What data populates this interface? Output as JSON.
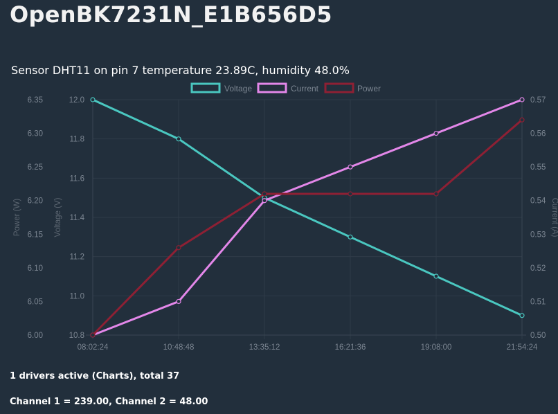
{
  "device": {
    "title": "OpenBK7231N_E1B656D5"
  },
  "sensor": {
    "text": "Sensor DHT11 on pin 7 temperature 23.89C, humidity 48.0%"
  },
  "status": {
    "drivers": "1 drivers active (Charts), total 37",
    "channels": "Channel 1 = 239.00, Channel 2 = 48.00"
  },
  "chart_data": {
    "type": "line",
    "categories": [
      "08:02:24",
      "10:48:48",
      "13:35:12",
      "16:21:36",
      "19:08:00",
      "21:54:24"
    ],
    "series": [
      {
        "name": "Voltage",
        "axis": "voltage",
        "color": "#4ac7c0",
        "values": [
          12.0,
          11.8,
          11.5,
          11.3,
          11.1,
          10.9
        ]
      },
      {
        "name": "Current",
        "axis": "current",
        "color": "#e387e9",
        "values": [
          0.5,
          0.51,
          0.54,
          0.55,
          0.56,
          0.57
        ]
      },
      {
        "name": "Power",
        "axis": "power",
        "color": "#8e2034",
        "values": [
          6.0,
          6.13,
          6.21,
          6.21,
          6.21,
          6.32
        ]
      }
    ],
    "axes": {
      "power": {
        "label": "Power (W)",
        "ylim": [
          6.0,
          6.35
        ],
        "ticks": [
          "6.00",
          "6.05",
          "6.10",
          "6.15",
          "6.20",
          "6.25",
          "6.30",
          "6.35"
        ],
        "position": "left-outer"
      },
      "voltage": {
        "label": "Voltage (V)",
        "ylim": [
          10.8,
          12.0
        ],
        "ticks": [
          "10.8",
          "11.0",
          "11.2",
          "11.4",
          "11.6",
          "11.8",
          "12.0"
        ],
        "position": "left-inner"
      },
      "current": {
        "label": "Current (A)",
        "ylim": [
          0.5,
          0.57
        ],
        "ticks": [
          "0.50",
          "0.51",
          "0.52",
          "0.53",
          "0.54",
          "0.55",
          "0.56",
          "0.57"
        ],
        "position": "right"
      }
    },
    "legend": "top-center",
    "grid": true
  }
}
